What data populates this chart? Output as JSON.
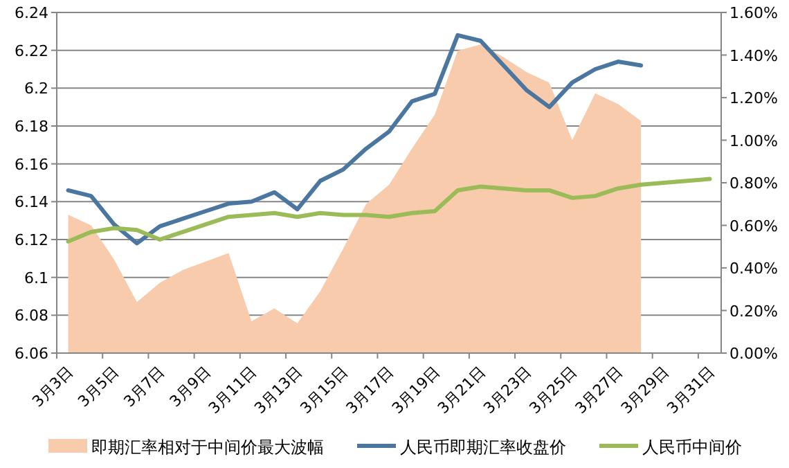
{
  "chart_data": {
    "type": "line",
    "categories": [
      "3月3日",
      null,
      "3月5日",
      null,
      "3月7日",
      null,
      "3月9日",
      null,
      "3月11日",
      null,
      "3月13日",
      null,
      "3月15日",
      null,
      "3月17日",
      null,
      "3月19日",
      null,
      "3月21日",
      null,
      "3月23日",
      null,
      "3月25日",
      null,
      "3月27日",
      null,
      "3月29日",
      null,
      "3月31日"
    ],
    "series": [
      {
        "name": "即期汇率相对于中间价最大波幅",
        "type": "area",
        "axis": "y2",
        "color": "#f8cbad",
        "values": [
          0.65,
          0.6,
          0.44,
          0.24,
          0.33,
          0.39,
          0.43,
          0.47,
          0.15,
          0.21,
          0.14,
          0.29,
          0.49,
          0.7,
          0.79,
          0.96,
          1.12,
          1.42,
          1.45,
          1.39,
          1.32,
          1.27,
          1.0,
          1.22,
          1.17,
          1.09,
          null,
          null,
          null
        ]
      },
      {
        "name": "人民币即期汇率收盘价",
        "color": "#4a76a0",
        "values": [
          6.146,
          6.143,
          6.128,
          6.118,
          6.127,
          6.131,
          6.135,
          6.139,
          6.14,
          6.145,
          6.136,
          6.151,
          6.157,
          6.168,
          6.177,
          6.193,
          6.197,
          6.228,
          6.225,
          6.212,
          6.199,
          6.19,
          6.203,
          6.21,
          6.214,
          6.212,
          null,
          null,
          null
        ]
      },
      {
        "name": "人民币中间价",
        "color": "#9bbb59",
        "values": [
          6.119,
          6.124,
          6.126,
          6.125,
          6.12,
          6.124,
          6.128,
          6.132,
          6.133,
          6.134,
          6.132,
          6.134,
          6.133,
          6.133,
          6.132,
          6.134,
          6.135,
          6.146,
          6.148,
          6.147,
          6.146,
          6.146,
          6.142,
          6.143,
          6.147,
          6.149,
          6.15,
          6.151,
          6.152
        ]
      }
    ],
    "ylim": [
      6.06,
      6.24
    ],
    "yticks": [
      6.06,
      6.08,
      6.1,
      6.12,
      6.14,
      6.16,
      6.18,
      6.2,
      6.22,
      6.24
    ],
    "y2lim": [
      0,
      1.6
    ],
    "y2ticks": [
      {
        "value": 0,
        "label": "0.00%"
      },
      {
        "value": 0.2,
        "label": "0.20%"
      },
      {
        "value": 0.4,
        "label": "0.40%"
      },
      {
        "value": 0.6,
        "label": "0.60%"
      },
      {
        "value": 0.8,
        "label": "0.80%"
      },
      {
        "value": 1.0,
        "label": "1.00%"
      },
      {
        "value": 1.2,
        "label": "1.20%"
      },
      {
        "value": 1.4,
        "label": "1.40%"
      },
      {
        "value": 1.6,
        "label": "1.60%"
      }
    ],
    "grid": "y",
    "legend": "bottom"
  }
}
